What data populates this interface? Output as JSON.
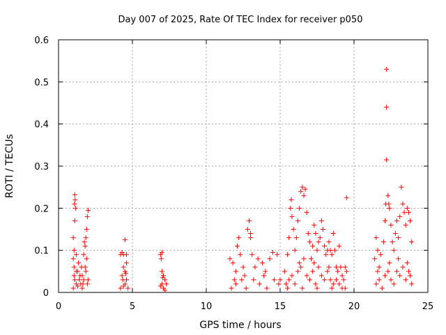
{
  "chart_data": {
    "type": "scatter",
    "title": "Day 007 of 2025, Rate Of TEC Index for receiver p050",
    "xlabel": "GPS time / hours",
    "ylabel": "ROTI / TECUs",
    "xlim": [
      0,
      25
    ],
    "ylim": [
      0,
      0.6
    ],
    "xticks": [
      0,
      5,
      10,
      15,
      20,
      25
    ],
    "yticks": [
      0,
      0.1,
      0.2,
      0.3,
      0.4,
      0.5,
      0.6
    ],
    "xtick_labels": [
      "0",
      "5",
      "10",
      "15",
      "20",
      "25"
    ],
    "ytick_labels": [
      "0",
      "0.1",
      "0.2",
      "0.3",
      "0.4",
      "0.5",
      "0.6"
    ],
    "grid": true,
    "marker": "+",
    "color": "#ff0000",
    "series": [
      {
        "name": "ROTI",
        "points": [
          [
            1.0,
            0.13
          ],
          [
            1.05,
            0.1
          ],
          [
            1.08,
            0.21
          ],
          [
            1.1,
            0.232
          ],
          [
            1.12,
            0.22
          ],
          [
            1.15,
            0.2
          ],
          [
            1.1,
            0.17
          ],
          [
            1.0,
            0.08
          ],
          [
            1.05,
            0.06
          ],
          [
            1.2,
            0.09
          ],
          [
            1.3,
            0.05
          ],
          [
            1.1,
            0.03
          ],
          [
            1.2,
            0.02
          ],
          [
            1.3,
            0.015
          ],
          [
            1.0,
            0.01
          ],
          [
            1.4,
            0.03
          ],
          [
            1.5,
            0.02
          ],
          [
            1.6,
            0.04
          ],
          [
            1.7,
            0.09
          ],
          [
            1.75,
            0.12
          ],
          [
            1.8,
            0.11
          ],
          [
            1.85,
            0.13
          ],
          [
            1.9,
            0.15
          ],
          [
            1.95,
            0.18
          ],
          [
            2.0,
            0.195
          ],
          [
            1.9,
            0.08
          ],
          [
            1.8,
            0.06
          ],
          [
            1.7,
            0.03
          ],
          [
            1.6,
            0.01
          ],
          [
            2.0,
            0.03
          ],
          [
            1.2,
            0.05
          ],
          [
            1.35,
            0.07
          ],
          [
            1.45,
            0.04
          ],
          [
            1.55,
            0.06
          ],
          [
            1.65,
            0.02
          ],
          [
            1.85,
            0.05
          ],
          [
            1.95,
            0.02
          ],
          [
            1.05,
            0.04
          ],
          [
            4.2,
            0.09
          ],
          [
            4.3,
            0.095
          ],
          [
            4.4,
            0.09
          ],
          [
            4.5,
            0.125
          ],
          [
            4.6,
            0.09
          ],
          [
            4.4,
            0.06
          ],
          [
            4.5,
            0.05
          ],
          [
            4.3,
            0.04
          ],
          [
            4.6,
            0.03
          ],
          [
            4.5,
            0.02
          ],
          [
            4.7,
            0.01
          ],
          [
            4.4,
            0.015
          ],
          [
            4.2,
            0.01
          ],
          [
            4.6,
            0.07
          ],
          [
            4.35,
            0.03
          ],
          [
            4.55,
            0.045
          ],
          [
            6.9,
            0.09
          ],
          [
            7.0,
            0.095
          ],
          [
            6.95,
            0.08
          ],
          [
            7.0,
            0.05
          ],
          [
            7.1,
            0.04
          ],
          [
            7.2,
            0.03
          ],
          [
            7.0,
            0.02
          ],
          [
            6.9,
            0.015
          ],
          [
            7.3,
            0.02
          ],
          [
            7.1,
            0.01
          ],
          [
            7.2,
            0.005
          ],
          [
            7.05,
            0.035
          ],
          [
            11.6,
            0.08
          ],
          [
            11.8,
            0.07
          ],
          [
            12.0,
            0.05
          ],
          [
            12.1,
            0.11
          ],
          [
            12.2,
            0.13
          ],
          [
            12.3,
            0.09
          ],
          [
            12.5,
            0.06
          ],
          [
            12.8,
            0.15
          ],
          [
            12.9,
            0.17
          ],
          [
            13.0,
            0.13
          ],
          [
            13.0,
            0.14
          ],
          [
            13.1,
            0.09
          ],
          [
            13.3,
            0.06
          ],
          [
            13.5,
            0.08
          ],
          [
            13.8,
            0.07
          ],
          [
            14.0,
            0.05
          ],
          [
            14.3,
            0.08
          ],
          [
            14.5,
            0.095
          ],
          [
            14.8,
            0.09
          ],
          [
            15.0,
            0.03
          ],
          [
            12.0,
            0.02
          ],
          [
            12.4,
            0.03
          ],
          [
            12.7,
            0.01
          ],
          [
            13.2,
            0.03
          ],
          [
            13.6,
            0.02
          ],
          [
            14.1,
            0.01
          ],
          [
            14.6,
            0.03
          ],
          [
            11.7,
            0.01
          ],
          [
            11.9,
            0.03
          ],
          [
            12.6,
            0.04
          ],
          [
            13.9,
            0.04
          ],
          [
            14.9,
            0.02
          ],
          [
            15.3,
            0.05
          ],
          [
            15.5,
            0.09
          ],
          [
            15.6,
            0.13
          ],
          [
            15.7,
            0.2
          ],
          [
            15.75,
            0.22
          ],
          [
            15.8,
            0.18
          ],
          [
            15.9,
            0.15
          ],
          [
            16.0,
            0.1
          ],
          [
            16.1,
            0.13
          ],
          [
            16.2,
            0.17
          ],
          [
            16.3,
            0.2
          ],
          [
            16.4,
            0.24
          ],
          [
            16.5,
            0.25
          ],
          [
            16.6,
            0.23
          ],
          [
            16.7,
            0.245
          ],
          [
            16.8,
            0.19
          ],
          [
            16.9,
            0.14
          ],
          [
            17.0,
            0.12
          ],
          [
            17.1,
            0.08
          ],
          [
            17.2,
            0.11
          ],
          [
            17.3,
            0.16
          ],
          [
            17.4,
            0.14
          ],
          [
            17.5,
            0.1
          ],
          [
            17.6,
            0.12
          ],
          [
            17.7,
            0.13
          ],
          [
            17.8,
            0.17
          ],
          [
            17.9,
            0.15
          ],
          [
            18.0,
            0.11
          ],
          [
            18.1,
            0.09
          ],
          [
            18.2,
            0.1
          ],
          [
            18.3,
            0.12
          ],
          [
            18.4,
            0.1
          ],
          [
            18.5,
            0.09
          ],
          [
            18.6,
            0.14
          ],
          [
            18.7,
            0.1
          ],
          [
            18.8,
            0.06
          ],
          [
            18.9,
            0.05
          ],
          [
            19.0,
            0.11
          ],
          [
            19.1,
            0.06
          ],
          [
            19.2,
            0.04
          ],
          [
            19.3,
            0.03
          ],
          [
            19.4,
            0.06
          ],
          [
            19.5,
            0.225
          ],
          [
            19.5,
            0.05
          ],
          [
            15.4,
            0.02
          ],
          [
            15.6,
            0.03
          ],
          [
            15.8,
            0.04
          ],
          [
            16.0,
            0.02
          ],
          [
            16.2,
            0.05
          ],
          [
            16.4,
            0.06
          ],
          [
            16.6,
            0.08
          ],
          [
            16.8,
            0.04
          ],
          [
            17.0,
            0.03
          ],
          [
            17.2,
            0.05
          ],
          [
            17.4,
            0.02
          ],
          [
            17.6,
            0.06
          ],
          [
            17.8,
            0.04
          ],
          [
            18.0,
            0.03
          ],
          [
            18.2,
            0.05
          ],
          [
            18.4,
            0.03
          ],
          [
            18.6,
            0.02
          ],
          [
            18.8,
            0.03
          ],
          [
            19.0,
            0.02
          ],
          [
            19.2,
            0.01
          ],
          [
            15.5,
            0.01
          ],
          [
            16.5,
            0.01
          ],
          [
            17.5,
            0.01
          ],
          [
            18.5,
            0.01
          ],
          [
            19.4,
            0.01
          ],
          [
            16.3,
            0.07
          ],
          [
            17.3,
            0.07
          ],
          [
            18.3,
            0.06
          ],
          [
            21.4,
            0.08
          ],
          [
            21.5,
            0.13
          ],
          [
            21.6,
            0.1
          ],
          [
            21.7,
            0.06
          ],
          [
            21.8,
            0.09
          ],
          [
            22.0,
            0.12
          ],
          [
            22.1,
            0.17
          ],
          [
            22.15,
            0.21
          ],
          [
            22.2,
            0.53
          ],
          [
            22.2,
            0.44
          ],
          [
            22.2,
            0.315
          ],
          [
            22.3,
            0.23
          ],
          [
            22.35,
            0.21
          ],
          [
            22.4,
            0.2
          ],
          [
            22.5,
            0.16
          ],
          [
            22.6,
            0.12
          ],
          [
            22.7,
            0.1
          ],
          [
            22.8,
            0.14
          ],
          [
            22.9,
            0.17
          ],
          [
            23.0,
            0.13
          ],
          [
            23.1,
            0.18
          ],
          [
            23.2,
            0.25
          ],
          [
            23.3,
            0.21
          ],
          [
            23.4,
            0.19
          ],
          [
            23.5,
            0.16
          ],
          [
            23.6,
            0.2
          ],
          [
            23.7,
            0.19
          ],
          [
            23.8,
            0.17
          ],
          [
            23.9,
            0.12
          ],
          [
            21.5,
            0.02
          ],
          [
            21.7,
            0.03
          ],
          [
            21.9,
            0.01
          ],
          [
            22.1,
            0.04
          ],
          [
            22.3,
            0.05
          ],
          [
            22.5,
            0.03
          ],
          [
            22.7,
            0.02
          ],
          [
            22.9,
            0.05
          ],
          [
            23.1,
            0.04
          ],
          [
            23.3,
            0.06
          ],
          [
            23.5,
            0.03
          ],
          [
            23.7,
            0.05
          ],
          [
            23.9,
            0.02
          ],
          [
            23.8,
            0.04
          ],
          [
            21.6,
            0.05
          ],
          [
            22.4,
            0.07
          ],
          [
            23.0,
            0.08
          ],
          [
            23.6,
            0.07
          ]
        ]
      }
    ]
  }
}
